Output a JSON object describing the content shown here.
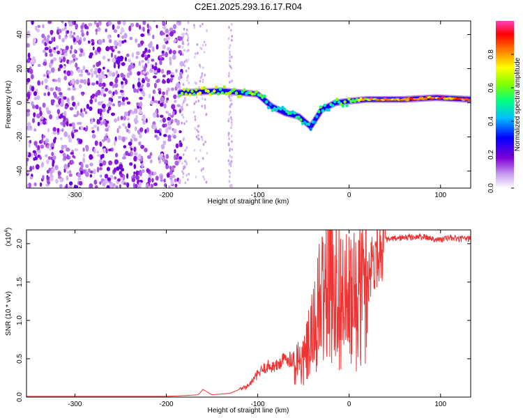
{
  "title": "C2E1.2025.293.16.17.R04",
  "colors": {
    "axis": "#000000",
    "snr_line": "#ee3333",
    "background": "#ffffff"
  },
  "chart_data": [
    {
      "type": "heatmap",
      "name": "spectrogram",
      "xlabel": "Height of straight line (km)",
      "ylabel": "Frequency (Hz)",
      "xlim": [
        -353,
        133
      ],
      "ylim": [
        -50,
        48
      ],
      "xticks": [
        -300,
        -200,
        -100,
        0,
        100
      ],
      "yticks": [
        -40,
        -20,
        0,
        20,
        40
      ],
      "colorbar": {
        "label": "Normalized spectral amplitude",
        "range": [
          0,
          1
        ],
        "ticks": [
          0.0,
          0.2,
          0.4,
          0.6,
          0.8
        ],
        "colormap": [
          "#ffffff",
          "#c8a0f0",
          "#8000d8",
          "#0000ff",
          "#00c0ff",
          "#00ff80",
          "#80ff00",
          "#ffff00",
          "#ff8000",
          "#ff0000",
          "#ff40c0"
        ]
      },
      "noise_region": {
        "x_range": [
          -353,
          -183
        ],
        "freq_range": [
          -50,
          48
        ]
      },
      "ridge": [
        {
          "x": -185,
          "freq": 6,
          "amp": 0.75
        },
        {
          "x": -160,
          "freq": 6.5,
          "amp": 0.7
        },
        {
          "x": -140,
          "freq": 7,
          "amp": 0.7
        },
        {
          "x": -120,
          "freq": 6,
          "amp": 0.65
        },
        {
          "x": -100,
          "freq": 5,
          "amp": 0.6
        },
        {
          "x": -85,
          "freq": -2,
          "amp": 0.5
        },
        {
          "x": -70,
          "freq": -6,
          "amp": 0.5
        },
        {
          "x": -55,
          "freq": -8,
          "amp": 0.55
        },
        {
          "x": -42,
          "freq": -14,
          "amp": 0.45
        },
        {
          "x": -30,
          "freq": -4,
          "amp": 0.55
        },
        {
          "x": -15,
          "freq": 0,
          "amp": 0.6
        },
        {
          "x": 0,
          "freq": 1,
          "amp": 0.65
        },
        {
          "x": 20,
          "freq": 2,
          "amp": 0.8
        },
        {
          "x": 60,
          "freq": 2,
          "amp": 0.95
        },
        {
          "x": 95,
          "freq": 3,
          "amp": 0.9
        },
        {
          "x": 133,
          "freq": 2,
          "amp": 0.95
        }
      ]
    },
    {
      "type": "line",
      "name": "snr",
      "xlabel": "Height of straight line (km)",
      "ylabel": "SNR (10 * v/v)",
      "multiplier": "(x10",
      "multiplier_exp": "4",
      "multiplier_close": ")",
      "xlim": [
        -353,
        133
      ],
      "ylim": [
        0,
        2.18
      ],
      "xticks": [
        -300,
        -200,
        -100,
        0,
        100
      ],
      "yticks": [
        0.0,
        0.5,
        1.0,
        1.5,
        2.0
      ],
      "ytick_labels": [
        "0.0",
        "0.5",
        "1.0",
        "1.5",
        "2.0"
      ],
      "series": [
        {
          "name": "SNR",
          "x": [
            -353,
            -300,
            -250,
            -200,
            -180,
            -165,
            -160,
            -150,
            -130,
            -120,
            -110,
            -100,
            -90,
            -80,
            -70,
            -60,
            -50,
            -40,
            -30,
            -20,
            -15,
            -10,
            0,
            10,
            20,
            30,
            40,
            60,
            80,
            90,
            100,
            110,
            120,
            133
          ],
          "y": [
            0.01,
            0.01,
            0.01,
            0.01,
            0.02,
            0.03,
            0.1,
            0.03,
            0.05,
            0.1,
            0.15,
            0.3,
            0.4,
            0.4,
            0.5,
            0.5,
            0.45,
            0.8,
            1.3,
            1.6,
            1.5,
            1.3,
            1.2,
            1.3,
            1.6,
            1.9,
            2.05,
            2.08,
            2.09,
            2.07,
            2.05,
            2.08,
            2.06,
            2.07
          ]
        }
      ]
    }
  ]
}
